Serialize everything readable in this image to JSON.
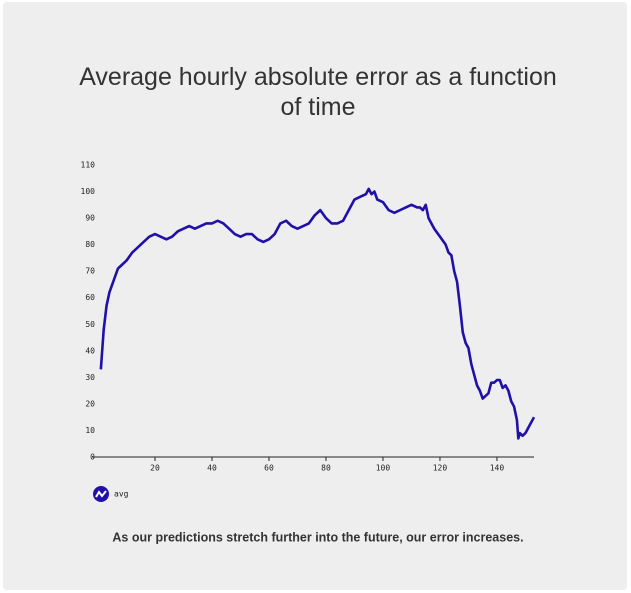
{
  "chart_data": {
    "type": "line",
    "title": "Average hourly absolute error as a function of time",
    "caption": "As our predictions stretch further into the future, our error increases.",
    "x": [
      1,
      2,
      3,
      4,
      5,
      6,
      7,
      8,
      10,
      12,
      14,
      16,
      18,
      20,
      22,
      24,
      26,
      28,
      30,
      32,
      34,
      36,
      38,
      40,
      42,
      44,
      46,
      48,
      50,
      52,
      54,
      56,
      58,
      60,
      62,
      64,
      66,
      68,
      70,
      72,
      74,
      76,
      78,
      80,
      82,
      84,
      86,
      88,
      90,
      92,
      94,
      95,
      96,
      97,
      98,
      100,
      102,
      104,
      106,
      108,
      110,
      112,
      113,
      114,
      115,
      116,
      118,
      120,
      122,
      123,
      124,
      125,
      126,
      127,
      128,
      129,
      130,
      131,
      132,
      133,
      134,
      135,
      136,
      137,
      138,
      139,
      140,
      141,
      142,
      143,
      144,
      145,
      146,
      147,
      147.5,
      148,
      149,
      150,
      151,
      153
    ],
    "series": [
      {
        "name": "avg",
        "color": "#2010a8",
        "values": [
          33,
          48,
          57,
          62,
          65,
          68,
          71,
          72,
          74,
          77,
          79,
          81,
          83,
          84,
          83,
          82,
          83,
          85,
          86,
          87,
          86,
          87,
          88,
          88,
          89,
          88,
          86,
          84,
          83,
          84,
          84,
          82,
          81,
          82,
          84,
          88,
          89,
          87,
          86,
          87,
          88,
          91,
          93,
          90,
          88,
          88,
          89,
          93,
          97,
          98,
          99,
          101,
          99,
          100,
          97,
          96,
          93,
          92,
          93,
          94,
          95,
          94,
          94,
          93,
          95,
          90,
          86,
          83,
          80,
          77,
          76,
          70,
          66,
          57,
          47,
          43,
          41,
          35,
          31,
          27,
          25,
          22,
          23,
          24,
          28,
          28,
          29,
          29,
          26,
          27,
          25,
          21,
          19,
          14,
          7,
          9,
          8,
          9,
          11,
          15
        ]
      }
    ],
    "xlim": [
      0,
      153
    ],
    "ylim": [
      0,
      110
    ],
    "xticks": [
      20,
      40,
      60,
      80,
      100,
      120,
      140
    ],
    "yticks": [
      0,
      10,
      20,
      30,
      40,
      50,
      60,
      70,
      80,
      90,
      100,
      110
    ]
  }
}
